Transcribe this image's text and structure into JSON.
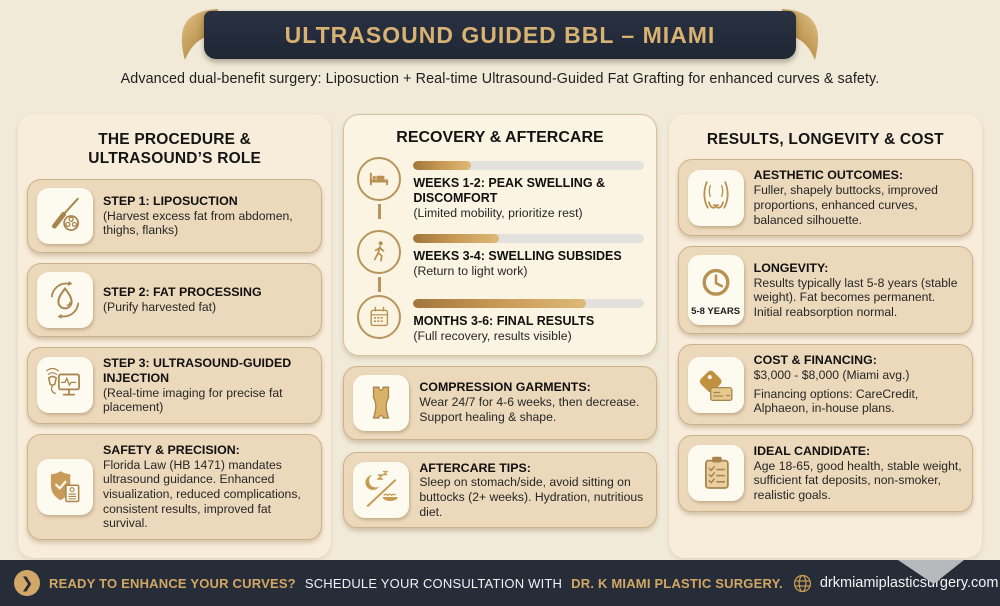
{
  "header": {
    "title": "ULTRASOUND GUIDED BBL – MIAMI",
    "subtitle": "Advanced dual-benefit surgery: Liposuction + Real-time Ultrasound-Guided Fat Grafting for enhanced curves & safety."
  },
  "columns": {
    "procedure": {
      "title": "THE PROCEDURE & ULTRASOUND’S ROLE",
      "cards": [
        {
          "icon": "liposuction-cannula-icon",
          "title": "STEP 1: LIPOSUCTION",
          "body": "(Harvest excess fat from abdomen, thighs, flanks)"
        },
        {
          "icon": "fat-processing-icon",
          "title": "STEP 2: FAT PROCESSING",
          "body": "(Purify harvested fat)"
        },
        {
          "icon": "ultrasound-monitor-icon",
          "title": "STEP 3: ULTRASOUND-GUIDED INJECTION",
          "body": "(Real-time imaging for precise fat placement)"
        },
        {
          "icon": "shield-check-icon",
          "title": "SAFETY & PRECISION:",
          "body": "Florida Law (HB 1471) mandates ultrasound guidance. Enhanced visualization, reduced complications, consistent results, improved fat survival."
        }
      ]
    },
    "recovery": {
      "title": "RECOVERY & AFTERCARE",
      "timeline": [
        {
          "icon": "bed-icon",
          "progress_pct": 25,
          "title": "WEEKS 1-2: PEAK SWELLING & DISCOMFORT",
          "body": "(Limited mobility, prioritize rest)"
        },
        {
          "icon": "walking-icon",
          "progress_pct": 37,
          "title": "WEEKS 3-4: SWELLING SUBSIDES",
          "body": "(Return to light work)"
        },
        {
          "icon": "calendar-icon",
          "progress_pct": 75,
          "title": "MONTHS 3-6: FINAL RESULTS",
          "body": "(Full recovery, results visible)"
        }
      ],
      "cards": [
        {
          "icon": "compression-garment-icon",
          "title": "COMPRESSION GARMENTS:",
          "body": "Wear 24/7 for 4-6 weeks, then decrease. Support healing & shape."
        },
        {
          "icon": "sleep-diet-icon",
          "title": "AFTERCARE TIPS:",
          "body": "Sleep on stomach/side, avoid sitting on buttocks (2+ weeks). Hydration, nutritious diet."
        }
      ]
    },
    "results": {
      "title": "RESULTS, LONGEVITY & COST",
      "cards": [
        {
          "icon": "buttocks-icon",
          "title": "AESTHETIC OUTCOMES:",
          "body": "Fuller, shapely buttocks, improved proportions, enhanced curves, balanced silhouette."
        },
        {
          "icon": "clock-icon",
          "icon_label": "5-8 YEARS",
          "title": "LONGEVITY:",
          "body": "Results typically last 5-8 years (stable weight). Fat becomes permanent. Initial reabsorption normal."
        },
        {
          "icon": "price-tag-card-icon",
          "title": "COST & FINANCING:",
          "body": "$3,000 - $8,000 (Miami avg.)",
          "body2": "Financing options: CareCredit, Alphaeon, in-house plans."
        },
        {
          "icon": "checklist-icon",
          "title": "IDEAL CANDIDATE:",
          "body": "Age 18-65, good health, stable weight, sufficient fat deposits, non-smoker, realistic goals."
        }
      ]
    }
  },
  "footer": {
    "cta_question": "READY TO ENHANCE YOUR CURVES?",
    "cta_text": "SCHEDULE YOUR CONSULTATION WITH",
    "cta_brand": "DR. K MIAMI PLASTIC SURGERY.",
    "website": "drkmiamiplasticsurgery.com",
    "arrow_icon": "arrow-circle-icon",
    "globe_icon": "globe-icon"
  },
  "colors": {
    "page_bg": "#f1ead9",
    "banner_bg": "#232b3a",
    "banner_gold": "#d7b273",
    "ribbon_curl_gold": "#c09a58",
    "panel_bg": "#f8ecdb",
    "card_bg": "#ecd9bc",
    "card_border": "#ccb28b",
    "tile_bg": "#fdfaf0",
    "icon_gold": "#a8854e",
    "timeline_card_bg": "#fbf4e3",
    "progress_fill": "#c89a55",
    "progress_track": "#e2e1dd",
    "footer_bg": "#262d39",
    "footer_gold": "#d2a764"
  }
}
